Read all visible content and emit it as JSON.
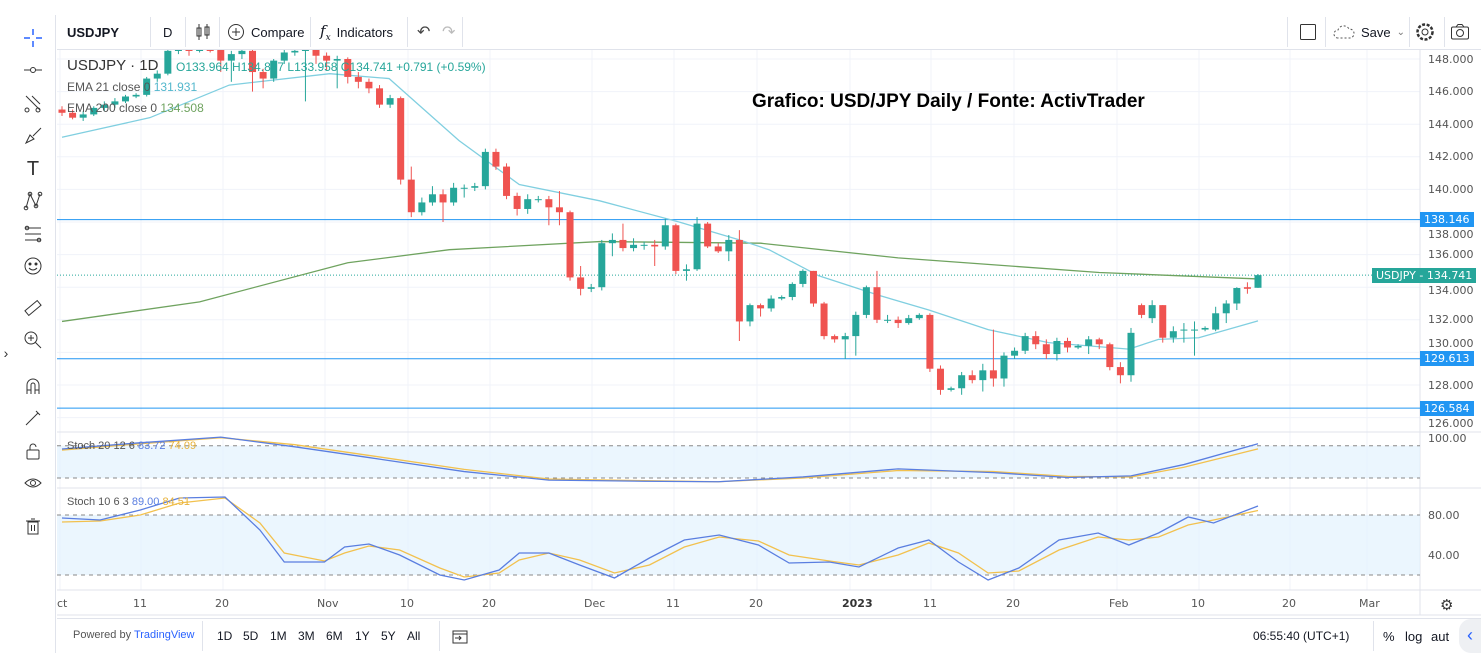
{
  "toolbar": {
    "symbol": "USDJPY",
    "interval": "D",
    "compare_label": "Compare",
    "indicators_label": "Indicators",
    "save_label": "Save"
  },
  "legend": {
    "title": "USDJPY · 1D",
    "ohlc": "O133.964 H134.807 L133.958 C134.741 +0.791 (+0.59%)",
    "ema21_label": "EMA 21 close 0",
    "ema21_value": "131.931",
    "ema200_label": "EMA 200 close 0",
    "ema200_value": "134.508",
    "stoch1_label": "Stoch 20 12 6",
    "stoch1_k": "83.72",
    "stoch1_d": "74.09",
    "stoch2_label": "Stoch 10 6 3",
    "stoch2_k": "89.00",
    "stoch2_d": "84.51"
  },
  "annotation": "Grafico: USD/JPY Daily / Fonte: ActivTrader",
  "colors": {
    "up": "#26a69a",
    "down": "#ef5350",
    "ema21": "#80cfe0",
    "ema200": "#6fa35f",
    "hline": "#2196f3",
    "stoch_k": "#5a7ee0",
    "stoch_d": "#f2c14e",
    "band": "#e3f2fd"
  },
  "bottom": {
    "powered_prefix": "Powered by ",
    "powered_brand": "TradingView",
    "ranges": [
      "1D",
      "5D",
      "1M",
      "3M",
      "6M",
      "1Y",
      "5Y",
      "All"
    ],
    "clock": "06:55:40 (UTC+1)",
    "percent": "%",
    "log": "log",
    "auto": "aut"
  },
  "chart_data": {
    "type": "candlestick",
    "symbol": "USDJPY",
    "interval": "1D",
    "price_axis": {
      "ticks": [
        "148.000",
        "146.000",
        "144.000",
        "142.000",
        "140.000",
        "138.000",
        "136.000",
        "134.000",
        "132.000",
        "130.000",
        "128.000",
        "126.000"
      ],
      "range": [
        125.5,
        148.5
      ]
    },
    "time_axis": {
      "ticks": [
        "ct",
        "11",
        "20",
        "Nov",
        "10",
        "20",
        "Dec",
        "11",
        "20",
        "2023",
        "11",
        "20",
        "Feb",
        "10",
        "20",
        "Mar"
      ]
    },
    "current_price": {
      "label": "USDJPY",
      "value": "134.741"
    },
    "horizontal_lines": [
      "138.146",
      "129.613",
      "126.584"
    ],
    "candles_ohlc": [
      [
        144.9,
        145.1,
        144.5,
        144.7
      ],
      [
        144.7,
        144.9,
        144.3,
        144.4
      ],
      [
        144.4,
        144.8,
        144.2,
        144.6
      ],
      [
        144.6,
        145.1,
        144.5,
        145.0
      ],
      [
        145.0,
        145.4,
        144.8,
        145.2
      ],
      [
        145.2,
        145.6,
        145.0,
        145.4
      ],
      [
        145.4,
        145.8,
        145.3,
        145.7
      ],
      [
        145.7,
        145.9,
        145.6,
        145.8
      ],
      [
        145.8,
        146.9,
        145.7,
        146.8
      ],
      [
        146.8,
        147.3,
        146.6,
        147.1
      ],
      [
        147.1,
        148.6,
        147.0,
        148.5
      ],
      [
        148.5,
        148.8,
        148.3,
        148.6
      ],
      [
        148.6,
        148.8,
        148.2,
        148.5
      ],
      [
        148.5,
        148.9,
        148.4,
        148.8
      ],
      [
        148.8,
        148.9,
        148.4,
        148.6
      ],
      [
        148.6,
        148.7,
        147.2,
        147.9
      ],
      [
        147.9,
        148.5,
        146.6,
        148.3
      ],
      [
        148.3,
        148.7,
        148.0,
        148.5
      ],
      [
        148.5,
        148.6,
        146.0,
        147.2
      ],
      [
        147.2,
        147.4,
        146.2,
        146.8
      ],
      [
        146.8,
        148.0,
        146.6,
        147.9
      ],
      [
        147.9,
        148.6,
        147.7,
        148.4
      ],
      [
        148.4,
        148.7,
        148.2,
        148.5
      ],
      [
        148.5,
        148.8,
        145.4,
        148.6
      ],
      [
        148.6,
        148.7,
        147.7,
        148.2
      ],
      [
        148.2,
        148.4,
        147.3,
        147.9
      ],
      [
        147.9,
        148.2,
        146.2,
        148.0
      ],
      [
        148.0,
        148.1,
        146.5,
        146.9
      ],
      [
        146.9,
        147.2,
        146.2,
        146.6
      ],
      [
        146.6,
        146.8,
        145.9,
        146.2
      ],
      [
        146.2,
        146.4,
        145.0,
        145.2
      ],
      [
        145.2,
        145.8,
        145.0,
        145.6
      ],
      [
        145.6,
        145.7,
        140.3,
        140.6
      ],
      [
        140.6,
        141.4,
        138.3,
        138.6
      ],
      [
        138.6,
        139.5,
        138.4,
        139.2
      ],
      [
        139.2,
        140.2,
        139.0,
        139.7
      ],
      [
        139.7,
        140.0,
        138.0,
        139.2
      ],
      [
        139.2,
        140.4,
        139.0,
        140.1
      ],
      [
        140.1,
        140.3,
        139.5,
        140.1
      ],
      [
        140.1,
        140.4,
        139.9,
        140.2
      ],
      [
        140.2,
        142.5,
        140.0,
        142.3
      ],
      [
        142.3,
        142.5,
        141.2,
        141.4
      ],
      [
        141.4,
        141.6,
        139.4,
        139.6
      ],
      [
        139.6,
        139.8,
        138.4,
        138.8
      ],
      [
        138.8,
        139.7,
        138.5,
        139.4
      ],
      [
        139.4,
        139.6,
        139.2,
        139.4
      ],
      [
        139.4,
        139.6,
        137.8,
        138.9
      ],
      [
        138.9,
        139.9,
        137.8,
        138.6
      ],
      [
        138.6,
        138.7,
        134.4,
        134.6
      ],
      [
        134.6,
        135.3,
        133.5,
        133.9
      ],
      [
        133.9,
        134.2,
        133.7,
        134.0
      ],
      [
        134.0,
        136.9,
        133.8,
        136.7
      ],
      [
        136.7,
        137.3,
        135.9,
        136.9
      ],
      [
        136.9,
        137.9,
        136.2,
        136.4
      ],
      [
        136.4,
        137.0,
        136.2,
        136.6
      ],
      [
        136.6,
        136.8,
        136.3,
        136.6
      ],
      [
        136.6,
        136.9,
        135.3,
        136.5
      ],
      [
        136.5,
        138.2,
        136.3,
        137.8
      ],
      [
        137.8,
        137.9,
        134.8,
        135.0
      ],
      [
        135.0,
        135.4,
        134.4,
        135.1
      ],
      [
        135.1,
        138.3,
        135.0,
        137.9
      ],
      [
        137.9,
        138.0,
        136.4,
        136.5
      ],
      [
        136.5,
        136.7,
        136.1,
        136.2
      ],
      [
        136.2,
        137.2,
        135.6,
        136.9
      ],
      [
        136.9,
        137.5,
        130.7,
        131.9
      ],
      [
        131.9,
        133.0,
        131.6,
        132.9
      ],
      [
        132.9,
        133.0,
        132.2,
        132.7
      ],
      [
        132.7,
        133.5,
        132.5,
        133.3
      ],
      [
        133.3,
        133.5,
        133.2,
        133.4
      ],
      [
        133.4,
        134.3,
        133.2,
        134.2
      ],
      [
        134.2,
        135.1,
        134.0,
        135.0
      ],
      [
        135.0,
        135.0,
        132.8,
        133.0
      ],
      [
        133.0,
        133.1,
        130.8,
        131.0
      ],
      [
        131.0,
        131.1,
        130.6,
        130.8
      ],
      [
        130.8,
        131.2,
        129.6,
        131.0
      ],
      [
        131.0,
        132.5,
        129.8,
        132.3
      ],
      [
        132.3,
        134.1,
        132.1,
        134.0
      ],
      [
        134.0,
        135.0,
        131.8,
        132.0
      ],
      [
        132.0,
        132.3,
        131.8,
        132.0
      ],
      [
        132.0,
        132.2,
        131.5,
        131.8
      ],
      [
        131.8,
        132.3,
        131.7,
        132.1
      ],
      [
        132.1,
        132.4,
        132.0,
        132.3
      ],
      [
        132.3,
        132.4,
        128.8,
        129.0
      ],
      [
        129.0,
        129.2,
        127.4,
        127.7
      ],
      [
        127.7,
        127.9,
        127.6,
        127.8
      ],
      [
        127.8,
        128.8,
        127.4,
        128.6
      ],
      [
        128.6,
        128.9,
        128.1,
        128.3
      ],
      [
        128.3,
        129.3,
        127.6,
        128.9
      ],
      [
        128.9,
        131.4,
        127.9,
        128.4
      ],
      [
        128.4,
        130.0,
        127.9,
        129.8
      ],
      [
        129.8,
        130.3,
        129.6,
        130.1
      ],
      [
        130.1,
        131.2,
        129.9,
        131.0
      ],
      [
        131.0,
        131.3,
        130.2,
        130.5
      ],
      [
        130.5,
        130.8,
        129.6,
        129.9
      ],
      [
        129.9,
        130.9,
        129.5,
        130.7
      ],
      [
        130.7,
        130.9,
        130.0,
        130.3
      ],
      [
        130.3,
        130.5,
        130.2,
        130.4
      ],
      [
        130.4,
        131.0,
        129.9,
        130.8
      ],
      [
        130.8,
        130.9,
        130.2,
        130.5
      ],
      [
        130.5,
        130.6,
        128.9,
        129.1
      ],
      [
        129.1,
        129.4,
        128.1,
        128.6
      ],
      [
        128.6,
        131.5,
        128.2,
        131.2
      ],
      [
        132.9,
        133.0,
        132.1,
        132.3
      ],
      [
        132.1,
        133.2,
        131.8,
        132.9
      ],
      [
        132.9,
        132.9,
        130.6,
        130.9
      ],
      [
        130.9,
        131.6,
        130.6,
        131.3
      ],
      [
        131.4,
        131.8,
        130.6,
        131.4
      ],
      [
        131.4,
        131.9,
        129.8,
        131.4
      ],
      [
        131.4,
        131.6,
        131.3,
        131.5
      ],
      [
        131.4,
        132.8,
        131.3,
        132.4
      ],
      [
        132.4,
        133.2,
        131.8,
        133.0
      ],
      [
        133.0,
        134.0,
        132.6,
        133.95
      ],
      [
        134.0,
        134.3,
        133.6,
        133.9
      ],
      [
        133.964,
        134.807,
        133.958,
        134.741
      ]
    ],
    "ema21": {
      "bar": [
        0,
        8.3,
        15.8,
        25.3,
        30.9,
        37.5,
        43.2,
        50.8,
        58.3,
        64,
        66.8,
        71.5,
        77.2,
        81.9,
        87.5,
        93.2,
        100.8,
        103.6,
        107.4,
        113
      ],
      "value": [
        143.2,
        144.4,
        146.4,
        147.1,
        146.8,
        143.0,
        140.3,
        139.3,
        138.0,
        136.9,
        136.3,
        134.7,
        133.5,
        132.6,
        131.4,
        130.6,
        130.2,
        130.8,
        130.9,
        131.931
      ]
    },
    "ema200": {
      "bar": [
        0,
        13,
        27,
        36.6,
        50.8,
        66,
        79,
        98,
        113
      ],
      "value": [
        131.9,
        133.1,
        135.5,
        136.3,
        136.8,
        136.7,
        135.8,
        134.9,
        134.508
      ]
    },
    "stoch1": {
      "name": "Stoch 20 12 6",
      "range": [
        0,
        100
      ],
      "levels": [
        80,
        20
      ],
      "ticks": [
        "100.00"
      ],
      "bar": [
        0,
        7,
        15,
        22,
        29,
        38,
        46,
        55,
        62,
        70,
        79,
        88,
        95,
        101,
        106,
        113
      ],
      "k": [
        74,
        85,
        96,
        78,
        58,
        32,
        16,
        14,
        13,
        22,
        37,
        30,
        21,
        24,
        45,
        83.72
      ],
      "d": [
        72,
        83,
        95,
        82,
        62,
        36,
        18,
        15,
        13,
        20,
        34,
        32,
        23,
        22,
        40,
        74.09
      ]
    },
    "stoch2": {
      "name": "Stoch 10 6 3",
      "range": [
        0,
        100
      ],
      "levels": [
        80,
        20
      ],
      "ticks": [
        "80.00",
        "40.00"
      ],
      "bar": [
        0,
        3.6,
        7.4,
        11.1,
        15.4,
        18.7,
        21,
        24.8,
        26.7,
        29,
        31.9,
        35.7,
        38,
        41.3,
        43.2,
        46,
        48.9,
        52.2,
        55.5,
        58.8,
        62.1,
        65.8,
        68.7,
        72.5,
        75.3,
        79,
        81.9,
        84.7,
        87.5,
        90.4,
        94.2,
        97.9,
        100.8,
        103.6,
        106.4,
        108.8,
        113
      ],
      "k": [
        77,
        75,
        85,
        97,
        98,
        65,
        33,
        33,
        48,
        51,
        40,
        20,
        15,
        25,
        42,
        42,
        30,
        17,
        37,
        55,
        60,
        50,
        32,
        33,
        28,
        47,
        55,
        33,
        15,
        27,
        55,
        62,
        50,
        62,
        78,
        72,
        89.0
      ],
      "d": [
        73,
        74,
        80,
        92,
        97,
        72,
        42,
        34,
        42,
        49,
        45,
        27,
        18,
        22,
        35,
        42,
        35,
        22,
        30,
        48,
        58,
        54,
        40,
        34,
        30,
        40,
        52,
        42,
        22,
        24,
        45,
        58,
        55,
        58,
        70,
        75,
        84.51
      ]
    }
  }
}
